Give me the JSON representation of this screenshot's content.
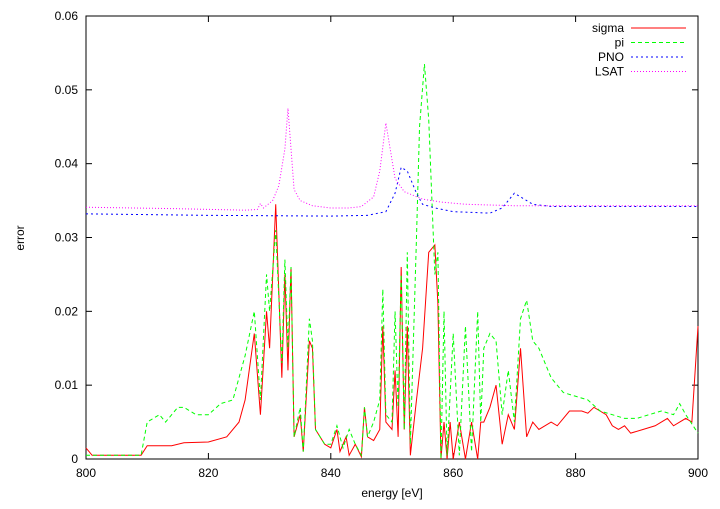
{
  "chart_data": {
    "type": "line",
    "xlabel": "energy [eV]",
    "ylabel": "error",
    "xlim": [
      800,
      900
    ],
    "xticks": [
      800,
      820,
      840,
      860,
      880,
      900
    ],
    "ylim": [
      0,
      0.06
    ],
    "yticks": [
      0,
      0.01,
      0.02,
      0.03,
      0.04,
      0.05,
      0.06
    ],
    "grid": false,
    "legend": "top-right",
    "series": [
      {
        "name": "sigma",
        "color": "#ff0000",
        "dash": "none",
        "x": [
          800,
          801,
          809,
          810,
          814,
          816,
          820,
          823,
          825,
          826,
          827.5,
          828.5,
          829.5,
          830,
          831,
          832,
          832.5,
          833,
          833.5,
          834,
          835,
          835.5,
          836.5,
          837,
          837.5,
          839,
          840,
          841,
          841.5,
          842.5,
          843,
          844,
          845,
          845.5,
          846,
          847,
          848,
          848.5,
          849,
          850,
          850.5,
          851,
          851.5,
          852,
          852.5,
          853,
          854,
          855,
          856,
          857,
          857.5,
          858,
          858.5,
          859,
          859.5,
          860,
          861,
          862,
          863,
          864,
          864.5,
          865,
          866,
          867,
          868,
          869,
          870,
          871,
          872,
          873,
          874,
          876,
          877,
          879,
          881,
          882,
          883,
          885,
          886,
          887,
          888,
          889,
          891,
          893,
          895,
          896,
          898,
          899,
          900
        ],
        "values": [
          0.0015,
          0.0005,
          0.0005,
          0.0018,
          0.0018,
          0.0022,
          0.0023,
          0.003,
          0.005,
          0.008,
          0.017,
          0.006,
          0.02,
          0.015,
          0.0345,
          0.011,
          0.025,
          0.012,
          0.026,
          0.003,
          0.006,
          0.001,
          0.016,
          0.015,
          0.004,
          0.002,
          0.0015,
          0.004,
          0.001,
          0.003,
          0.0005,
          0.002,
          0.0003,
          0.007,
          0.003,
          0.0025,
          0.004,
          0.018,
          0.005,
          0.004,
          0.012,
          0.003,
          0.026,
          0.004,
          0.018,
          0.0005,
          0.008,
          0.015,
          0.028,
          0.029,
          0.021,
          0,
          0.005,
          0,
          0.005,
          0,
          0.005,
          0,
          0.005,
          0,
          0.005,
          0.005,
          0.007,
          0.01,
          0.002,
          0.006,
          0.004,
          0.015,
          0.003,
          0.005,
          0.004,
          0.005,
          0.0045,
          0.0065,
          0.0065,
          0.0062,
          0.007,
          0.006,
          0.0045,
          0.004,
          0.0045,
          0.0035,
          0.004,
          0.0045,
          0.0055,
          0.0045,
          0.0055,
          0.005,
          0.018
        ]
      },
      {
        "name": "pi",
        "color": "#00ff00",
        "dash": "4,3",
        "x": [
          800,
          809,
          810,
          812,
          813,
          815,
          816,
          818,
          820,
          822,
          824,
          825,
          826,
          827.5,
          828.5,
          829.5,
          830,
          831,
          832,
          832.5,
          833,
          833.5,
          834,
          835,
          835.5,
          836.5,
          837,
          837.5,
          839,
          840,
          841,
          842,
          843,
          844,
          845,
          845.5,
          846,
          847,
          848,
          848.5,
          849,
          850,
          850.5,
          851,
          851.5,
          852,
          852.5,
          853,
          854,
          854.5,
          855.3,
          856,
          857,
          857.5,
          858,
          858.5,
          859,
          860,
          861,
          862,
          863,
          864,
          864.5,
          865,
          866,
          867,
          868,
          869,
          870,
          871,
          872,
          873,
          874,
          876,
          878,
          880,
          882,
          884,
          886,
          888,
          890,
          892,
          894,
          896,
          897,
          898,
          900
        ],
        "values": [
          0.0005,
          0.0005,
          0.005,
          0.006,
          0.005,
          0.007,
          0.007,
          0.006,
          0.006,
          0.0075,
          0.008,
          0.011,
          0.014,
          0.02,
          0.008,
          0.025,
          0.02,
          0.031,
          0.013,
          0.027,
          0.015,
          0.026,
          0.003,
          0.007,
          0.001,
          0.019,
          0.016,
          0.004,
          0.002,
          0.002,
          0.0045,
          0.0015,
          0.004,
          0.002,
          0.0005,
          0.007,
          0.003,
          0.005,
          0.008,
          0.023,
          0.006,
          0.005,
          0.02,
          0.007,
          0.025,
          0.004,
          0.028,
          0.002,
          0.03,
          0.045,
          0.0535,
          0.046,
          0.025,
          0.028,
          0,
          0.02,
          0.0005,
          0.017,
          0.0005,
          0.018,
          0.001,
          0.02,
          0.005,
          0.015,
          0.017,
          0.016,
          0.006,
          0.012,
          0.005,
          0.019,
          0.0215,
          0.016,
          0.015,
          0.011,
          0.009,
          0.0085,
          0.008,
          0.0065,
          0.006,
          0.0055,
          0.0055,
          0.006,
          0.0065,
          0.006,
          0.0075,
          0.006,
          0.0035
        ]
      },
      {
        "name": "PNO",
        "color": "#0000ff",
        "dash": "2,3",
        "x": [
          800,
          820,
          840,
          846,
          849,
          850.5,
          851.5,
          852.5,
          854,
          855,
          857,
          860,
          866,
          868,
          870,
          871,
          873,
          876,
          900
        ],
        "values": [
          0.0332,
          0.033,
          0.0329,
          0.033,
          0.0335,
          0.036,
          0.0395,
          0.039,
          0.036,
          0.0345,
          0.034,
          0.0335,
          0.0333,
          0.034,
          0.036,
          0.0355,
          0.0345,
          0.0342,
          0.0342
        ]
      },
      {
        "name": "LSAT",
        "color": "#ff00ff",
        "dash": "1,2",
        "x": [
          800,
          815,
          826,
          828,
          828.5,
          829,
          830.5,
          831.5,
          832.5,
          833,
          833.5,
          834,
          835,
          837,
          840,
          843,
          845,
          847,
          848,
          849,
          849.5,
          850.5,
          852,
          855,
          858,
          862,
          870,
          900
        ],
        "values": [
          0.0341,
          0.0339,
          0.0337,
          0.0338,
          0.0346,
          0.034,
          0.035,
          0.037,
          0.042,
          0.0475,
          0.042,
          0.0365,
          0.035,
          0.0343,
          0.034,
          0.034,
          0.0342,
          0.0355,
          0.039,
          0.0455,
          0.043,
          0.038,
          0.0362,
          0.0352,
          0.0348,
          0.0345,
          0.0343,
          0.0343
        ]
      }
    ]
  }
}
